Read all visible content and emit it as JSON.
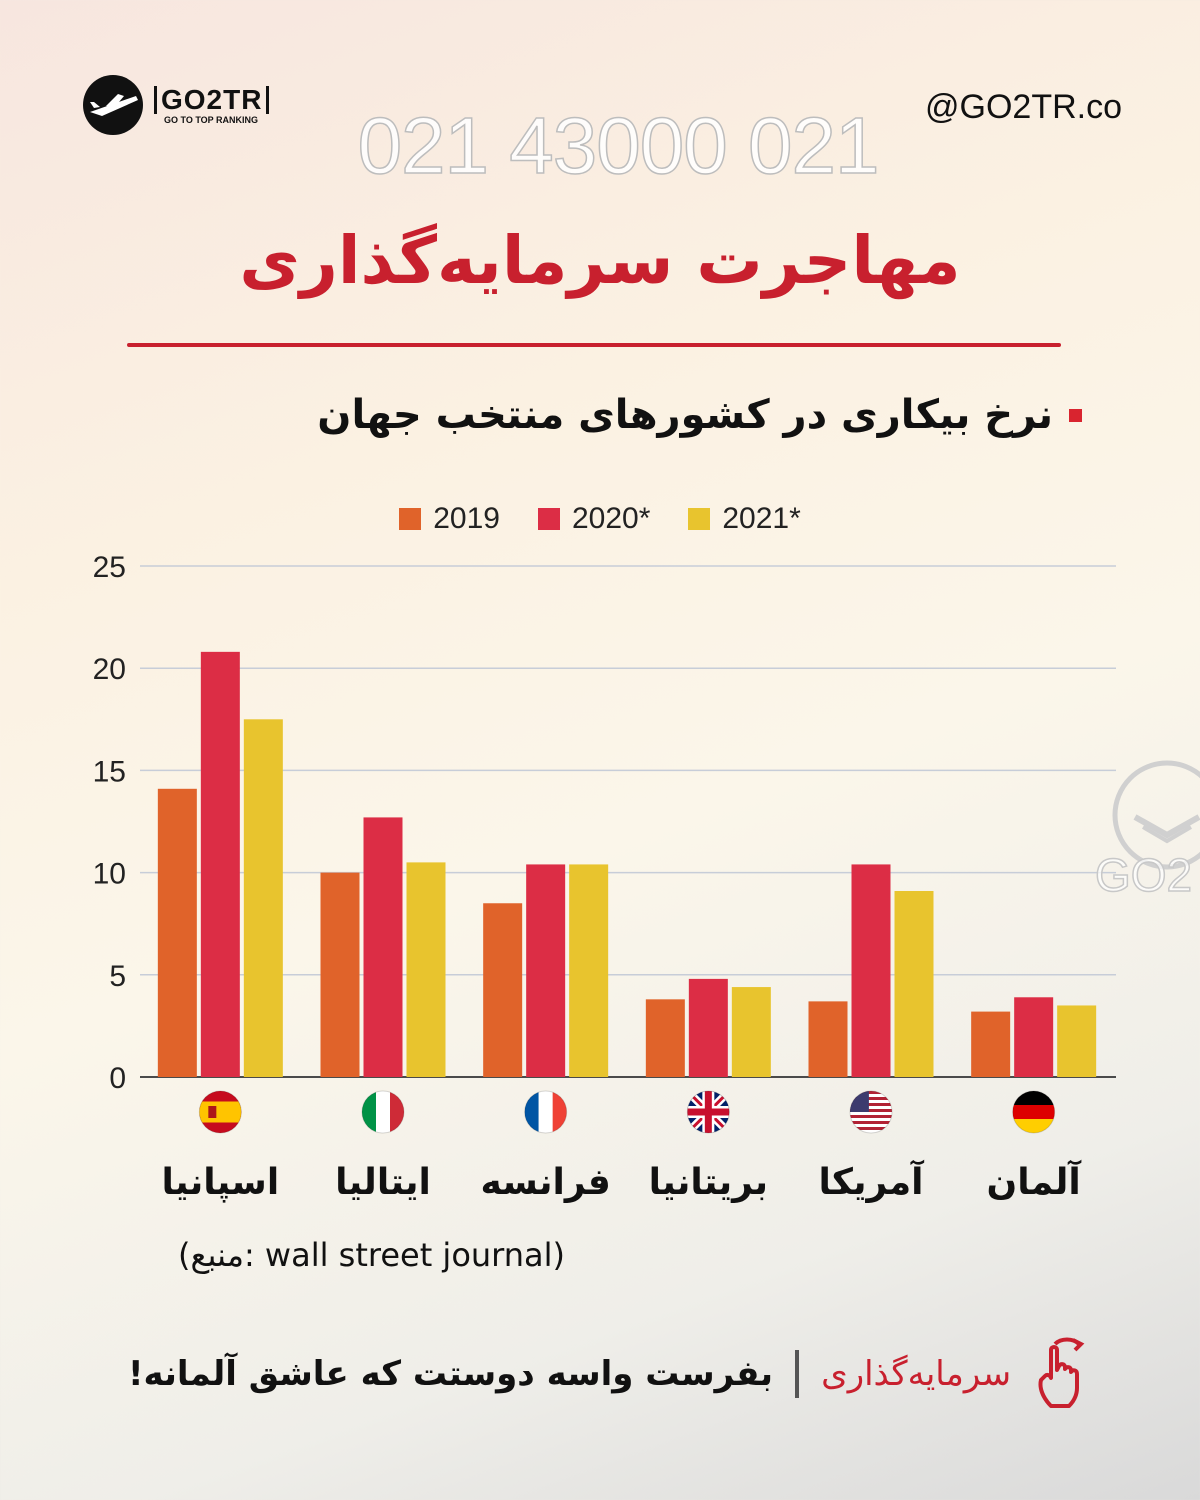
{
  "header": {
    "logo_name": "GO2TR",
    "logo_tagline": "GO TO TOP RANKING",
    "handle": "@GO2TR.co",
    "phone_watermark": "021 43000 021"
  },
  "title": "مهاجرت سرمایه‌گذاری",
  "subtitle": "نرخ بیکاری در کشورهای منتخب جهان",
  "watermark_text": "GO2",
  "colors": {
    "accent": "#c8202e",
    "s2019": "#e0632a",
    "s2020": "#dc2d45",
    "s2021": "#e8c42e"
  },
  "chart_data": {
    "type": "bar",
    "categories": [
      "اسپانیا",
      "ایتالیا",
      "فرانسه",
      "بریتانیا",
      "آمریکا",
      "آلمان"
    ],
    "category_flags": [
      "spain-flag-icon",
      "italy-flag-icon",
      "france-flag-icon",
      "uk-flag-icon",
      "usa-flag-icon",
      "germany-flag-icon"
    ],
    "series": [
      {
        "name": "2019",
        "color": "#e0632a",
        "values": [
          14.1,
          10.0,
          8.5,
          3.8,
          3.7,
          3.2
        ]
      },
      {
        "name": "2020*",
        "color": "#dc2d45",
        "values": [
          20.8,
          12.7,
          10.4,
          4.8,
          10.4,
          3.9
        ]
      },
      {
        "name": "2021*",
        "color": "#e8c42e",
        "values": [
          17.5,
          10.5,
          10.4,
          4.4,
          9.1,
          3.5
        ]
      }
    ],
    "ylim": [
      0,
      25
    ],
    "yticks": [
      "0",
      "5",
      "10",
      "15",
      "20",
      "25"
    ],
    "grid": true,
    "legend_position": "top-center"
  },
  "source": "(منبع: wall street journal)",
  "footer": {
    "brand": "سرمایه‌گذاری",
    "cta": "بفرست واسه دوستت که عاشق آلمانه!"
  }
}
